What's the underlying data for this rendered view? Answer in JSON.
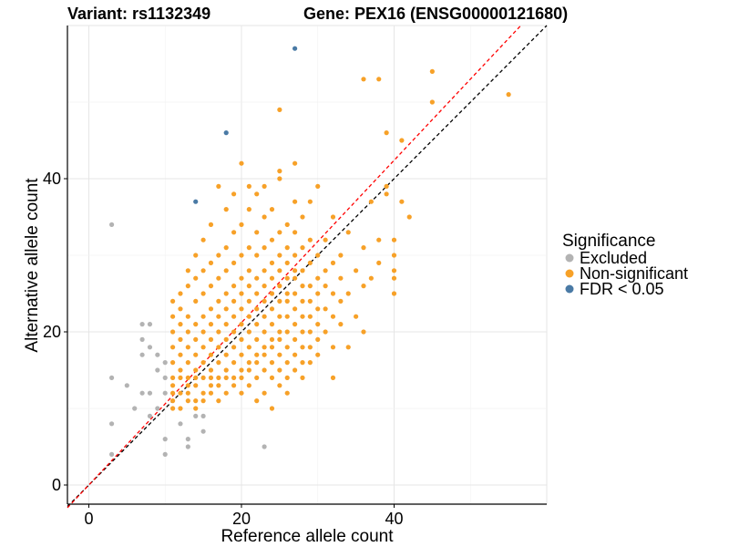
{
  "title": {
    "variant": "Variant: rs1132349",
    "gene": "Gene: PEX16 (ENSG00000121680)"
  },
  "legend": {
    "title": "Significance",
    "items": [
      {
        "label": "Excluded",
        "color": "#b3b3b3"
      },
      {
        "label": "Non-significant",
        "color": "#f7a128"
      },
      {
        "label": "FDR < 0.05",
        "color": "#4a7aa5"
      }
    ]
  },
  "chart_data": {
    "type": "scatter",
    "xlabel": "Reference allele count",
    "ylabel": "Alternative allele count",
    "xlim": [
      -2.8,
      60
    ],
    "ylim": [
      -2.5,
      60
    ],
    "x_ticks": [
      0,
      20,
      40
    ],
    "y_ticks": [
      0,
      20,
      40
    ],
    "grid": true,
    "legend_position": "right",
    "reference_lines": [
      {
        "kind": "identity",
        "slope": 1,
        "intercept": 0,
        "color": "#000000",
        "style": "dashed"
      },
      {
        "kind": "fit",
        "slope": 1.06,
        "intercept": 0,
        "color": "#ff0000",
        "style": "dashed"
      }
    ],
    "series": [
      {
        "name": "Excluded",
        "color": "#b3b3b3",
        "points": [
          [
            3,
            34
          ],
          [
            3,
            14
          ],
          [
            3,
            8
          ],
          [
            3,
            4
          ],
          [
            5,
            13
          ],
          [
            6,
            10
          ],
          [
            7,
            21
          ],
          [
            7,
            19
          ],
          [
            7,
            17
          ],
          [
            7,
            12
          ],
          [
            8,
            21
          ],
          [
            8,
            18
          ],
          [
            8,
            12
          ],
          [
            8,
            9
          ],
          [
            9,
            17
          ],
          [
            9,
            15
          ],
          [
            9,
            10
          ],
          [
            10,
            16
          ],
          [
            10,
            14
          ],
          [
            10,
            12
          ],
          [
            10,
            6
          ],
          [
            10,
            4
          ],
          [
            12,
            8
          ],
          [
            13,
            6
          ],
          [
            13,
            5
          ],
          [
            14,
            9
          ],
          [
            15,
            7
          ],
          [
            15,
            9
          ],
          [
            23,
            5
          ]
        ]
      },
      {
        "name": "Non-significant",
        "color": "#f7a128",
        "points": [
          [
            11,
            10
          ],
          [
            11,
            11
          ],
          [
            11,
            12
          ],
          [
            11,
            13
          ],
          [
            11,
            14
          ],
          [
            11,
            16
          ],
          [
            11,
            18
          ],
          [
            11,
            20
          ],
          [
            11,
            22
          ],
          [
            11,
            24
          ],
          [
            12,
            10
          ],
          [
            12,
            12
          ],
          [
            12,
            14
          ],
          [
            12,
            15
          ],
          [
            12,
            17
          ],
          [
            12,
            19
          ],
          [
            12,
            21
          ],
          [
            12,
            23
          ],
          [
            12,
            25
          ],
          [
            13,
            11
          ],
          [
            13,
            12
          ],
          [
            13,
            13
          ],
          [
            13,
            14
          ],
          [
            13,
            16
          ],
          [
            13,
            18
          ],
          [
            13,
            20
          ],
          [
            13,
            22
          ],
          [
            13,
            26
          ],
          [
            13,
            28
          ],
          [
            14,
            10
          ],
          [
            14,
            11
          ],
          [
            14,
            13
          ],
          [
            14,
            14
          ],
          [
            14,
            15
          ],
          [
            14,
            17
          ],
          [
            14,
            19
          ],
          [
            14,
            21
          ],
          [
            14,
            24
          ],
          [
            14,
            27
          ],
          [
            14,
            30
          ],
          [
            15,
            11
          ],
          [
            15,
            12
          ],
          [
            15,
            14
          ],
          [
            15,
            16
          ],
          [
            15,
            18
          ],
          [
            15,
            20
          ],
          [
            15,
            22
          ],
          [
            15,
            25
          ],
          [
            15,
            28
          ],
          [
            15,
            32
          ],
          [
            16,
            12
          ],
          [
            16,
            13
          ],
          [
            16,
            14
          ],
          [
            16,
            15
          ],
          [
            16,
            17
          ],
          [
            16,
            19
          ],
          [
            16,
            21
          ],
          [
            16,
            23
          ],
          [
            16,
            26
          ],
          [
            16,
            29
          ],
          [
            16,
            34
          ],
          [
            17,
            11
          ],
          [
            17,
            13
          ],
          [
            17,
            14
          ],
          [
            17,
            16
          ],
          [
            17,
            18
          ],
          [
            17,
            20
          ],
          [
            17,
            22
          ],
          [
            17,
            24
          ],
          [
            17,
            27
          ],
          [
            17,
            30
          ],
          [
            17,
            39
          ],
          [
            18,
            12
          ],
          [
            18,
            14
          ],
          [
            18,
            15
          ],
          [
            18,
            17
          ],
          [
            18,
            19
          ],
          [
            18,
            21
          ],
          [
            18,
            23
          ],
          [
            18,
            25
          ],
          [
            18,
            28
          ],
          [
            18,
            31
          ],
          [
            18,
            36
          ],
          [
            19,
            13
          ],
          [
            19,
            14
          ],
          [
            19,
            16
          ],
          [
            19,
            18
          ],
          [
            19,
            20
          ],
          [
            19,
            22
          ],
          [
            19,
            24
          ],
          [
            19,
            26
          ],
          [
            19,
            29
          ],
          [
            19,
            33
          ],
          [
            19,
            38
          ],
          [
            20,
            12
          ],
          [
            20,
            14
          ],
          [
            20,
            15
          ],
          [
            20,
            17
          ],
          [
            20,
            19
          ],
          [
            20,
            21
          ],
          [
            20,
            23
          ],
          [
            20,
            25
          ],
          [
            20,
            27
          ],
          [
            20,
            30
          ],
          [
            20,
            34
          ],
          [
            20,
            42
          ],
          [
            21,
            13
          ],
          [
            21,
            15
          ],
          [
            21,
            16
          ],
          [
            21,
            18
          ],
          [
            21,
            20
          ],
          [
            21,
            22
          ],
          [
            21,
            24
          ],
          [
            21,
            26
          ],
          [
            21,
            28
          ],
          [
            21,
            31
          ],
          [
            21,
            36
          ],
          [
            21,
            39
          ],
          [
            22,
            11
          ],
          [
            22,
            14
          ],
          [
            22,
            16
          ],
          [
            22,
            17
          ],
          [
            22,
            19
          ],
          [
            22,
            21
          ],
          [
            22,
            23
          ],
          [
            22,
            25
          ],
          [
            22,
            27
          ],
          [
            22,
            30
          ],
          [
            22,
            33
          ],
          [
            22,
            38
          ],
          [
            23,
            12
          ],
          [
            23,
            15
          ],
          [
            23,
            17
          ],
          [
            23,
            18
          ],
          [
            23,
            20
          ],
          [
            23,
            22
          ],
          [
            23,
            24
          ],
          [
            23,
            26
          ],
          [
            23,
            28
          ],
          [
            23,
            31
          ],
          [
            23,
            35
          ],
          [
            23,
            39
          ],
          [
            24,
            10
          ],
          [
            24,
            14
          ],
          [
            24,
            16
          ],
          [
            24,
            18
          ],
          [
            24,
            19
          ],
          [
            24,
            21
          ],
          [
            24,
            23
          ],
          [
            24,
            25
          ],
          [
            24,
            27
          ],
          [
            24,
            29
          ],
          [
            24,
            32
          ],
          [
            24,
            36
          ],
          [
            25,
            13
          ],
          [
            25,
            15
          ],
          [
            25,
            17
          ],
          [
            25,
            19
          ],
          [
            25,
            20
          ],
          [
            25,
            22
          ],
          [
            25,
            24
          ],
          [
            25,
            26
          ],
          [
            25,
            28
          ],
          [
            25,
            30
          ],
          [
            25,
            33
          ],
          [
            25,
            40
          ],
          [
            25,
            41
          ],
          [
            25,
            49
          ],
          [
            26,
            12
          ],
          [
            26,
            14
          ],
          [
            26,
            16
          ],
          [
            26,
            18
          ],
          [
            26,
            20
          ],
          [
            26,
            22
          ],
          [
            26,
            24
          ],
          [
            26,
            25
          ],
          [
            26,
            27
          ],
          [
            26,
            29
          ],
          [
            26,
            31
          ],
          [
            26,
            34
          ],
          [
            27,
            15
          ],
          [
            27,
            17
          ],
          [
            27,
            19
          ],
          [
            27,
            21
          ],
          [
            27,
            23
          ],
          [
            27,
            25
          ],
          [
            27,
            27
          ],
          [
            27,
            28
          ],
          [
            27,
            30
          ],
          [
            27,
            33
          ],
          [
            27,
            37
          ],
          [
            27,
            42
          ],
          [
            28,
            14
          ],
          [
            28,
            16
          ],
          [
            28,
            18
          ],
          [
            28,
            20
          ],
          [
            28,
            22
          ],
          [
            28,
            24
          ],
          [
            28,
            26
          ],
          [
            28,
            28
          ],
          [
            28,
            31
          ],
          [
            28,
            35
          ],
          [
            29,
            16
          ],
          [
            29,
            18
          ],
          [
            29,
            20
          ],
          [
            29,
            22
          ],
          [
            29,
            24
          ],
          [
            29,
            26
          ],
          [
            29,
            29
          ],
          [
            29,
            32
          ],
          [
            29,
            37
          ],
          [
            30,
            17
          ],
          [
            30,
            19
          ],
          [
            30,
            21
          ],
          [
            30,
            23
          ],
          [
            30,
            25
          ],
          [
            30,
            27
          ],
          [
            30,
            30
          ],
          [
            30,
            39
          ],
          [
            31,
            20
          ],
          [
            31,
            23
          ],
          [
            31,
            26
          ],
          [
            31,
            28
          ],
          [
            31,
            32
          ],
          [
            32,
            14
          ],
          [
            32,
            18
          ],
          [
            32,
            22
          ],
          [
            32,
            25
          ],
          [
            32,
            29
          ],
          [
            32,
            35
          ],
          [
            33,
            21
          ],
          [
            33,
            24
          ],
          [
            33,
            27
          ],
          [
            33,
            30
          ],
          [
            34,
            18
          ],
          [
            34,
            25
          ],
          [
            34,
            33
          ],
          [
            35,
            22
          ],
          [
            35,
            28
          ],
          [
            36,
            20
          ],
          [
            36,
            26
          ],
          [
            36,
            31
          ],
          [
            36,
            53
          ],
          [
            37,
            27
          ],
          [
            37,
            37
          ],
          [
            38,
            53
          ],
          [
            38,
            32
          ],
          [
            38,
            29
          ],
          [
            39,
            38
          ],
          [
            39,
            46
          ],
          [
            39,
            39
          ],
          [
            40,
            30
          ],
          [
            40,
            28
          ],
          [
            40,
            32
          ],
          [
            40,
            25
          ],
          [
            40,
            27
          ],
          [
            41,
            45
          ],
          [
            41,
            37
          ],
          [
            42,
            35
          ],
          [
            45,
            54
          ],
          [
            45,
            50
          ],
          [
            55,
            51
          ]
        ]
      },
      {
        "name": "FDR < 0.05",
        "color": "#4a7aa5",
        "points": [
          [
            27,
            57
          ],
          [
            18,
            46
          ],
          [
            14,
            37
          ]
        ]
      }
    ]
  }
}
